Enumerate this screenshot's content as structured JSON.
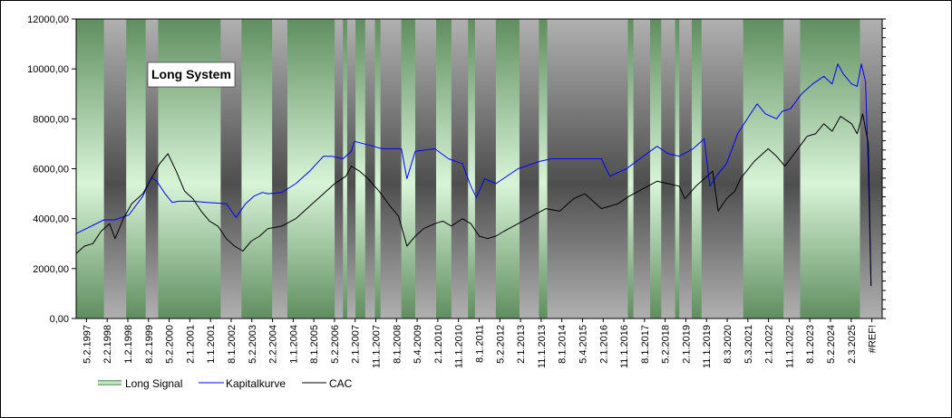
{
  "chart_data": {
    "type": "line",
    "title": "Long System",
    "y_axis": {
      "min": 0,
      "max": 12000,
      "step": 2000,
      "tick_labels": [
        "0,00",
        "2000,00",
        "4000,00",
        "6000,00",
        "8000,00",
        "10000,00",
        "12000,00"
      ],
      "grid": false
    },
    "x_tick_labels": [
      "5.2.1997",
      "2.2.1998",
      "1.2.1998",
      "8.2.1999",
      "5.2.2000",
      "2.1.2001",
      "1.1.2001",
      "8.1.2002",
      "5.2.2003",
      "2.2.2004",
      "1.1.2004",
      "8.1.2005",
      "5.2.2006",
      "2.1.2007",
      "11.1.2007",
      "8.1.2008",
      "5.4.2009",
      "2.1.2010",
      "11.1.2010",
      "8.1.2011",
      "5.2.2012",
      "2.1.2013",
      "11.1.2013",
      "8.1.2014",
      "5.4.2015",
      "2.1.2016",
      "11.1.2016",
      "8.1.2017",
      "5.2.2018",
      "2.1.2019",
      "11.1.2019",
      "8.3.2020",
      "5.3.2021",
      "2.1.2022",
      "11.1.2022",
      "8.1.2023",
      "5.2.2024",
      "2.3.2025",
      "#REF!"
    ],
    "legend": {
      "placement": "bottom-left",
      "entries": [
        "Long Signal",
        "Kapitalkurve",
        "CAC"
      ]
    },
    "long_signal": {
      "name": "Long Signal",
      "active_periods": [
        [
          1997.1,
          1998.1
        ],
        [
          1998.9,
          1999.6
        ],
        [
          2000.05,
          2002.3
        ],
        [
          2003.05,
          2004.15
        ],
        [
          2004.7,
          2006.4
        ],
        [
          2006.7,
          2006.85
        ],
        [
          2007.15,
          2007.5
        ],
        [
          2007.85,
          2008.05
        ],
        [
          2008.8,
          2009.3
        ],
        [
          2010.05,
          2010.6
        ],
        [
          2011.2,
          2011.45
        ],
        [
          2012.2,
          2013.05
        ],
        [
          2013.75,
          2014.05
        ],
        [
          2016.95,
          2017.15
        ],
        [
          2017.75,
          2018.15
        ],
        [
          2018.65,
          2018.8
        ],
        [
          2019.25,
          2019.6
        ],
        [
          2021.1,
          2022.55
        ],
        [
          2023.15,
          2025.3
        ]
      ]
    },
    "series": [
      {
        "name": "Kapitalkurve",
        "color": "#0000ff",
        "x": [
          1997.1,
          1998.1,
          1998.5,
          1999.0,
          1999.5,
          1999.8,
          2000.0,
          2000.3,
          2000.55,
          2000.8,
          2001.0,
          2001.3,
          2001.8,
          2002.5,
          2002.85,
          2003.2,
          2003.5,
          2003.8,
          2004.0,
          2004.5,
          2005.0,
          2005.5,
          2006.0,
          2006.3,
          2006.7,
          2007.0,
          2007.1,
          2007.8,
          2008.1,
          2008.8,
          2009.0,
          2009.3,
          2010.0,
          2010.5,
          2011.0,
          2011.3,
          2011.5,
          2011.8,
          2012.2,
          2013.0,
          2013.8,
          2014.2,
          2016.0,
          2016.3,
          2016.9,
          2017.5,
          2018.0,
          2018.4,
          2018.8,
          2019.3,
          2019.7,
          2019.9,
          2020.2,
          2020.5,
          2020.9,
          2021.3,
          2021.6,
          2021.9,
          2022.3,
          2022.5,
          2022.8,
          2023.2,
          2023.6,
          2024.0,
          2024.3,
          2024.5,
          2024.7,
          2025.0,
          2025.2,
          2025.35,
          2025.5,
          2025.6,
          2025.7
        ],
        "values": [
          3400,
          3950,
          3950,
          4150,
          4900,
          5650,
          5500,
          5000,
          4650,
          4700,
          4700,
          4700,
          4650,
          4600,
          4050,
          4600,
          4900,
          5050,
          5000,
          5050,
          5400,
          5900,
          6500,
          6500,
          6400,
          6700,
          7100,
          6900,
          6800,
          6800,
          5600,
          6700,
          6800,
          6400,
          6200,
          5300,
          4850,
          5600,
          5400,
          6000,
          6300,
          6400,
          6400,
          5700,
          6000,
          6500,
          6900,
          6600,
          6500,
          6800,
          7200,
          5300,
          5800,
          6200,
          7400,
          8100,
          8600,
          8200,
          8000,
          8300,
          8400,
          9000,
          9400,
          9700,
          9400,
          10200,
          9800,
          9400,
          9300,
          10200,
          9500,
          6000,
          1300
        ]
      },
      {
        "name": "CAC",
        "color": "#000000",
        "x": [
          1997.1,
          1997.4,
          1997.7,
          1998.0,
          1998.3,
          1998.5,
          1998.8,
          1999.1,
          1999.5,
          1999.8,
          2000.1,
          2000.4,
          2000.7,
          2001.0,
          2001.3,
          2001.6,
          2001.9,
          2002.2,
          2002.5,
          2002.8,
          2003.1,
          2003.4,
          2003.7,
          2004.0,
          2004.5,
          2005.0,
          2005.5,
          2006.0,
          2006.4,
          2006.8,
          2007.0,
          2007.3,
          2007.6,
          2008.0,
          2008.4,
          2008.7,
          2009.0,
          2009.3,
          2009.6,
          2010.0,
          2010.3,
          2010.6,
          2011.0,
          2011.3,
          2011.6,
          2011.9,
          2012.2,
          2012.5,
          2013.0,
          2013.5,
          2014.0,
          2014.5,
          2015.0,
          2015.4,
          2015.7,
          2016.0,
          2016.3,
          2016.6,
          2017.0,
          2017.5,
          2018.0,
          2018.4,
          2018.8,
          2019.0,
          2019.4,
          2019.7,
          2020.0,
          2020.2,
          2020.5,
          2020.8,
          2021.0,
          2021.5,
          2022.0,
          2022.3,
          2022.6,
          2023.0,
          2023.4,
          2023.7,
          2024.0,
          2024.3,
          2024.6,
          2025.0,
          2025.2,
          2025.4,
          2025.6,
          2025.7
        ],
        "values": [
          2600,
          2900,
          3000,
          3500,
          3800,
          3200,
          4000,
          4600,
          5000,
          5600,
          6200,
          6600,
          5900,
          5100,
          4800,
          4300,
          3900,
          3700,
          3200,
          2900,
          2700,
          3100,
          3300,
          3600,
          3700,
          4000,
          4500,
          5000,
          5400,
          5700,
          6100,
          5900,
          5600,
          5100,
          4500,
          4100,
          2900,
          3300,
          3600,
          3800,
          3900,
          3700,
          4000,
          3800,
          3300,
          3200,
          3300,
          3500,
          3800,
          4100,
          4400,
          4300,
          4800,
          5000,
          4700,
          4400,
          4500,
          4600,
          4900,
          5200,
          5500,
          5400,
          5300,
          4800,
          5300,
          5600,
          5900,
          4300,
          4800,
          5100,
          5600,
          6300,
          6800,
          6500,
          6100,
          6700,
          7300,
          7400,
          7800,
          7500,
          8100,
          7800,
          7400,
          8200,
          7000,
          1300
        ]
      }
    ]
  }
}
